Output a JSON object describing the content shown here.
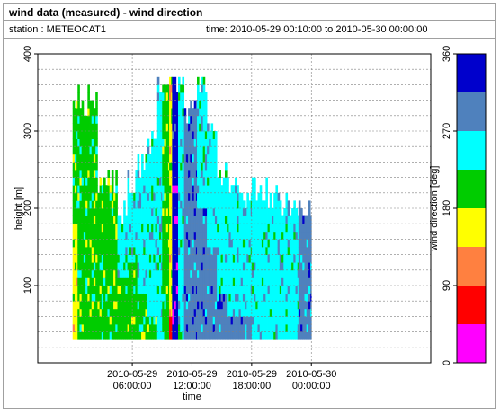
{
  "window": {
    "title": "wind data (measured) - wind direction",
    "station": "station : METEOCAT1",
    "time_range": "time: 2010-05-29 00:10:00 to 2010-05-30 00:00:00"
  },
  "chart_data": {
    "type": "heatmap",
    "xlabel": "time",
    "ylabel": "height [m]",
    "x_range_hours": [
      -3.5,
      36
    ],
    "xlim_hours": [
      0,
      24
    ],
    "x_ticks": [
      {
        "hour": 6,
        "line1": "2010-05-29",
        "line2": "06:00:00"
      },
      {
        "hour": 12,
        "line1": "2010-05-29",
        "line2": "12:00:00"
      },
      {
        "hour": 18,
        "line1": "2010-05-29",
        "line2": "18:00:00"
      },
      {
        "hour": 24,
        "line1": "2010-05-30",
        "line2": "00:00:00"
      }
    ],
    "ylim": [
      0,
      400
    ],
    "y_ticks": [
      100,
      200,
      300,
      400
    ],
    "grid": true,
    "colorbar": {
      "label": "wind direction [deg]",
      "min": 0,
      "max": 360,
      "ticks": [
        0,
        90,
        180,
        270,
        360
      ],
      "classes": [
        {
          "from": 0,
          "to": 45,
          "color": "#ff00ff"
        },
        {
          "from": 45,
          "to": 90,
          "color": "#ff0000"
        },
        {
          "from": 90,
          "to": 135,
          "color": "#ff8040"
        },
        {
          "from": 135,
          "to": 180,
          "color": "#ffff00"
        },
        {
          "from": 180,
          "to": 225,
          "color": "#00cc00"
        },
        {
          "from": 225,
          "to": 270,
          "color": "#00ffff"
        },
        {
          "from": 270,
          "to": 315,
          "color": "#4f81bd"
        },
        {
          "from": 315,
          "to": 360,
          "color": "#0000cc"
        }
      ]
    },
    "profile_heights": {
      "min": 35,
      "max": 365,
      "step": 10
    },
    "segments": [
      {
        "start": 0.0,
        "end": 0.5,
        "top": 340,
        "dir": 200,
        "low_dir": 160,
        "low_top": 180
      },
      {
        "start": 0.5,
        "end": 2.5,
        "top": 340,
        "dir": 200,
        "low_dir": 200,
        "low_top": 0
      },
      {
        "start": 2.5,
        "end": 4.5,
        "top": 240,
        "dir": 200,
        "low_dir": 200,
        "low_top": 0
      },
      {
        "start": 4.5,
        "end": 5.5,
        "top": 200,
        "dir": 240,
        "low_dir": 200,
        "low_top": 110
      },
      {
        "start": 5.5,
        "end": 6.5,
        "top": 230,
        "dir": 240,
        "low_dir": 200,
        "low_top": 130
      },
      {
        "start": 6.5,
        "end": 7.5,
        "top": 260,
        "dir": 240,
        "low_dir": 200,
        "low_top": 90
      },
      {
        "start": 7.5,
        "end": 8.5,
        "top": 280,
        "dir": 240,
        "low_dir": 200,
        "low_top": 60
      },
      {
        "start": 8.5,
        "end": 9.0,
        "top": 365,
        "dir": 240,
        "low_dir": 200,
        "low_top": 0
      },
      {
        "start": 9.0,
        "end": 9.7,
        "top": 365,
        "dir": 200,
        "low_dir": 200,
        "low_top": 0
      },
      {
        "start": 9.7,
        "end": 10.0,
        "top": 365,
        "dir": 160,
        "low_dir": 70,
        "low_top": 60
      },
      {
        "start": 10.0,
        "end": 10.6,
        "top": 365,
        "dir": 330,
        "low_dir": 330,
        "low_top": 0
      },
      {
        "start": 10.6,
        "end": 11.2,
        "top": 365,
        "dir": 240,
        "low_dir": 240,
        "low_top": 0
      },
      {
        "start": 11.2,
        "end": 12.5,
        "top": 320,
        "dir": 280,
        "low_dir": 280,
        "low_top": 0
      },
      {
        "start": 12.5,
        "end": 13.5,
        "top": 360,
        "dir": 250,
        "low_dir": 280,
        "low_top": 200
      },
      {
        "start": 13.5,
        "end": 14.5,
        "top": 300,
        "dir": 250,
        "low_dir": 280,
        "low_top": 150
      },
      {
        "start": 14.5,
        "end": 15.5,
        "top": 240,
        "dir": 250,
        "low_dir": 280,
        "low_top": 90
      },
      {
        "start": 15.5,
        "end": 18.0,
        "top": 220,
        "dir": 250,
        "low_dir": 280,
        "low_top": 60
      },
      {
        "start": 18.0,
        "end": 21.0,
        "top": 220,
        "dir": 250,
        "low_dir": 250,
        "low_top": 0
      },
      {
        "start": 21.0,
        "end": 22.7,
        "top": 210,
        "dir": 250,
        "low_dir": 250,
        "low_top": 0
      },
      {
        "start": 22.7,
        "end": 24.0,
        "top": 200,
        "dir": 280,
        "low_dir": 280,
        "low_top": 0
      }
    ]
  }
}
